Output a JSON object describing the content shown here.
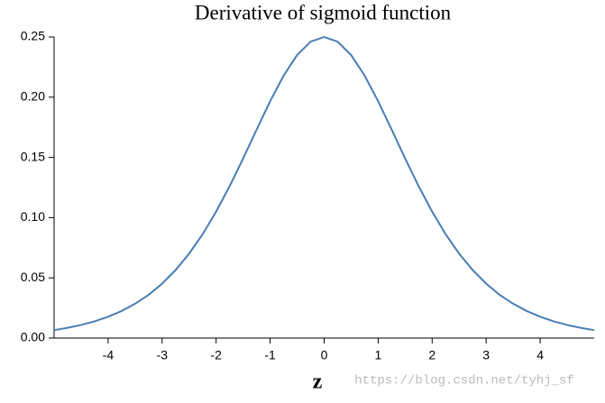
{
  "chart_data": {
    "type": "line",
    "title": "Derivative of sigmoid function",
    "x_label": "z",
    "watermark": "https://blog.csdn.net/tyhj_sf",
    "x": [
      -5,
      -4.75,
      -4.5,
      -4.25,
      -4,
      -3.75,
      -3.5,
      -3.25,
      -3,
      -2.75,
      -2.5,
      -2.25,
      -2,
      -1.75,
      -1.5,
      -1.25,
      -1,
      -0.75,
      -0.5,
      -0.25,
      0,
      0.25,
      0.5,
      0.75,
      1,
      1.25,
      1.5,
      1.75,
      2,
      2.25,
      2.5,
      2.75,
      3,
      3.25,
      3.5,
      3.75,
      4,
      4.25,
      4.5,
      4.75,
      5
    ],
    "series": [
      {
        "name": "sigmoid derivative",
        "color": "#4a7db4",
        "values": [
          0.0066,
          0.0085,
          0.0109,
          0.0139,
          0.0177,
          0.0225,
          0.0285,
          0.0359,
          0.0452,
          0.0565,
          0.0701,
          0.0862,
          0.105,
          0.1261,
          0.1491,
          0.1731,
          0.1966,
          0.2179,
          0.235,
          0.2461,
          0.25,
          0.2461,
          0.235,
          0.2179,
          0.1966,
          0.1731,
          0.1491,
          0.1261,
          0.105,
          0.0862,
          0.0701,
          0.0565,
          0.0452,
          0.0359,
          0.0285,
          0.0225,
          0.0177,
          0.0139,
          0.0109,
          0.0085,
          0.0066
        ]
      }
    ],
    "xlim": [
      -5,
      5
    ],
    "xticks": [
      -4,
      -3,
      -2,
      -1,
      0,
      1,
      2,
      3,
      4
    ],
    "ylim": [
      0,
      0.25
    ],
    "yticks": [
      {
        "value": 0,
        "label": "0.00"
      },
      0.05,
      {
        "value": 0.1,
        "label": "0.10"
      },
      0.15,
      {
        "value": 0.2,
        "label": "0.20"
      },
      0.25
    ],
    "grid": false
  }
}
